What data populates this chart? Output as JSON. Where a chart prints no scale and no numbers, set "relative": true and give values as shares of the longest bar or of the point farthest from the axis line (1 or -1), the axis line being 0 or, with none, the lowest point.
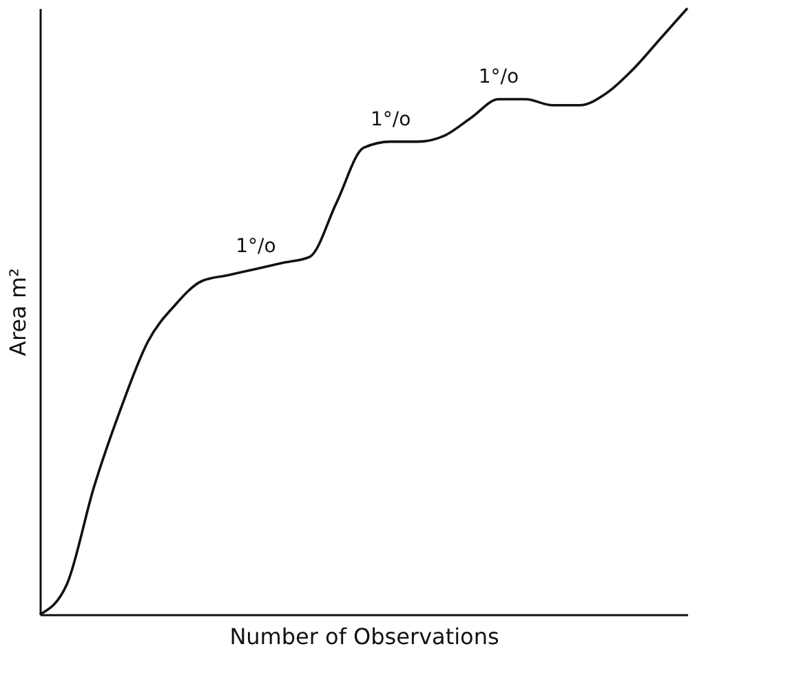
{
  "chart_data": {
    "type": "line",
    "relative": true,
    "xlabel": "Number of Observations",
    "ylabel": "Area m²",
    "color": "#111111",
    "grid": false,
    "tick_labels": false,
    "categories": [
      null,
      null,
      null,
      null,
      null,
      null,
      null,
      null,
      null,
      null,
      null,
      null,
      null,
      null,
      null,
      null,
      null,
      null,
      null,
      null,
      null,
      null,
      null,
      null,
      null
    ],
    "values": [
      0,
      0.05,
      0.21,
      0.34,
      0.45,
      0.51,
      0.55,
      0.56,
      0.57,
      0.58,
      0.59,
      0.68,
      0.77,
      0.78,
      0.78,
      0.79,
      0.82,
      0.85,
      0.85,
      0.84,
      0.84,
      0.86,
      0.9,
      0.95,
      1
    ],
    "annotations": [
      {
        "text": "1°/o",
        "y": 0.57
      },
      {
        "text": "1°/o",
        "y": 0.78
      },
      {
        "text": "1°/o",
        "y": 0.85
      }
    ]
  }
}
